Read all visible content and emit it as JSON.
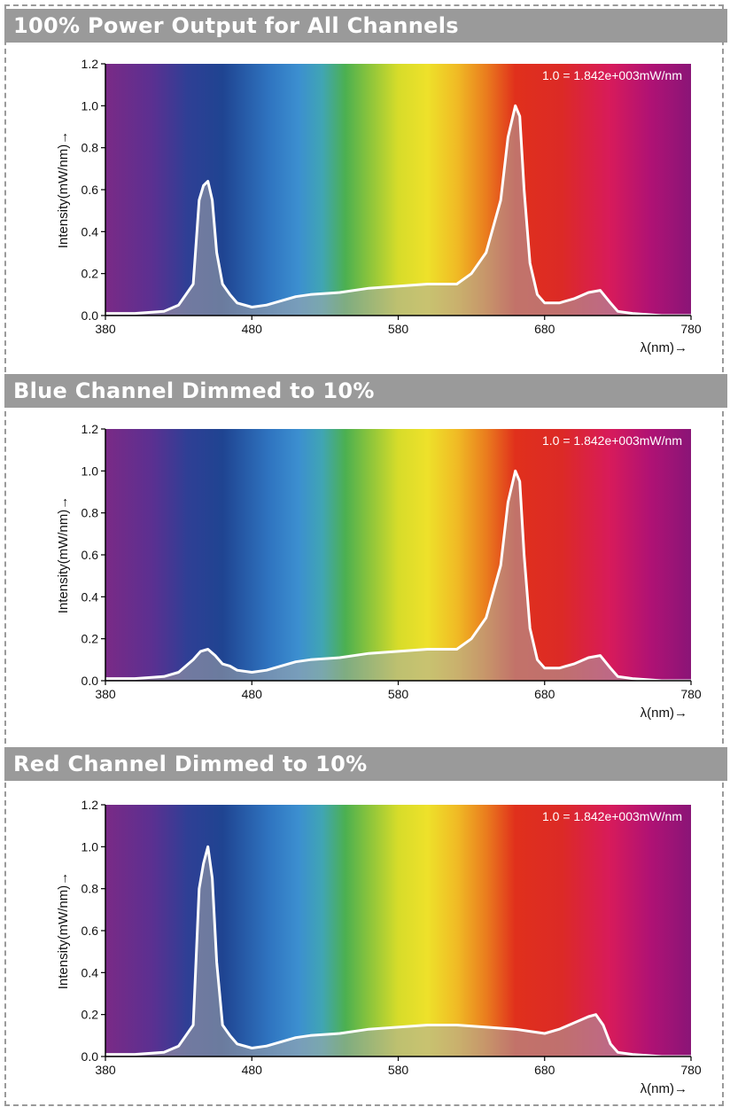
{
  "chart_data": [
    {
      "type": "area",
      "title": "100% Power Output for All Channels",
      "xlabel": "λ(nm)→",
      "ylabel": "Intensity(mW/nm)→",
      "annotation": "1.0 = 1.842e+003mW/nm",
      "xlim": [
        380,
        780
      ],
      "ylim": [
        0,
        1.2
      ],
      "xticks": [
        "380",
        "480",
        "580",
        "680",
        "780"
      ],
      "yticks": [
        "0.0",
        "0.2",
        "0.4",
        "0.6",
        "0.8",
        "1.0",
        "1.2"
      ],
      "grid": false,
      "series": [
        {
          "x": [
            380,
            400,
            420,
            430,
            440,
            444,
            447,
            450,
            453,
            456,
            460,
            465,
            470,
            480,
            490,
            500,
            510,
            520,
            540,
            560,
            580,
            600,
            620,
            630,
            640,
            650,
            655,
            660,
            663,
            666,
            670,
            675,
            680,
            690,
            700,
            710,
            718,
            725,
            730,
            740,
            760,
            780
          ],
          "y": [
            0.01,
            0.01,
            0.02,
            0.05,
            0.15,
            0.55,
            0.62,
            0.64,
            0.55,
            0.3,
            0.15,
            0.1,
            0.06,
            0.04,
            0.05,
            0.07,
            0.09,
            0.1,
            0.11,
            0.13,
            0.14,
            0.15,
            0.15,
            0.2,
            0.3,
            0.55,
            0.85,
            1.0,
            0.95,
            0.6,
            0.25,
            0.1,
            0.06,
            0.06,
            0.08,
            0.11,
            0.12,
            0.06,
            0.02,
            0.01,
            0.0,
            0.0
          ]
        }
      ]
    },
    {
      "type": "area",
      "title": "Blue Channel Dimmed to 10%",
      "xlabel": "λ(nm)→",
      "ylabel": "Intensity(mW/nm)→",
      "annotation": "1.0 = 1.842e+003mW/nm",
      "xlim": [
        380,
        780
      ],
      "ylim": [
        0,
        1.2
      ],
      "xticks": [
        "380",
        "480",
        "580",
        "680",
        "780"
      ],
      "yticks": [
        "0.0",
        "0.2",
        "0.4",
        "0.6",
        "0.8",
        "1.0",
        "1.2"
      ],
      "grid": false,
      "series": [
        {
          "x": [
            380,
            400,
            420,
            430,
            440,
            445,
            450,
            455,
            460,
            465,
            470,
            480,
            490,
            500,
            510,
            520,
            540,
            560,
            580,
            600,
            620,
            630,
            640,
            650,
            655,
            660,
            663,
            666,
            670,
            675,
            680,
            690,
            700,
            710,
            718,
            725,
            730,
            740,
            760,
            780
          ],
          "y": [
            0.01,
            0.01,
            0.02,
            0.04,
            0.1,
            0.14,
            0.15,
            0.12,
            0.08,
            0.07,
            0.05,
            0.04,
            0.05,
            0.07,
            0.09,
            0.1,
            0.11,
            0.13,
            0.14,
            0.15,
            0.15,
            0.2,
            0.3,
            0.55,
            0.85,
            1.0,
            0.95,
            0.6,
            0.25,
            0.1,
            0.06,
            0.06,
            0.08,
            0.11,
            0.12,
            0.06,
            0.02,
            0.01,
            0.0,
            0.0
          ]
        }
      ]
    },
    {
      "type": "area",
      "title": "Red Channel Dimmed to 10%",
      "xlabel": "λ(nm)→",
      "ylabel": "Intensity(mW/nm)→",
      "annotation": "1.0 = 1.842e+003mW/nm",
      "xlim": [
        380,
        780
      ],
      "ylim": [
        0,
        1.2
      ],
      "xticks": [
        "380",
        "480",
        "580",
        "680",
        "780"
      ],
      "yticks": [
        "0.0",
        "0.2",
        "0.4",
        "0.6",
        "0.8",
        "1.0",
        "1.2"
      ],
      "grid": false,
      "series": [
        {
          "x": [
            380,
            400,
            420,
            430,
            440,
            444,
            447,
            450,
            453,
            456,
            460,
            465,
            470,
            480,
            490,
            500,
            510,
            520,
            540,
            560,
            580,
            600,
            620,
            640,
            660,
            670,
            680,
            690,
            700,
            710,
            715,
            720,
            725,
            730,
            740,
            760,
            780
          ],
          "y": [
            0.01,
            0.01,
            0.02,
            0.05,
            0.15,
            0.8,
            0.92,
            1.0,
            0.85,
            0.45,
            0.15,
            0.1,
            0.06,
            0.04,
            0.05,
            0.07,
            0.09,
            0.1,
            0.11,
            0.13,
            0.14,
            0.15,
            0.15,
            0.14,
            0.13,
            0.12,
            0.11,
            0.13,
            0.16,
            0.19,
            0.2,
            0.15,
            0.06,
            0.02,
            0.01,
            0.0,
            0.0
          ]
        }
      ]
    }
  ]
}
